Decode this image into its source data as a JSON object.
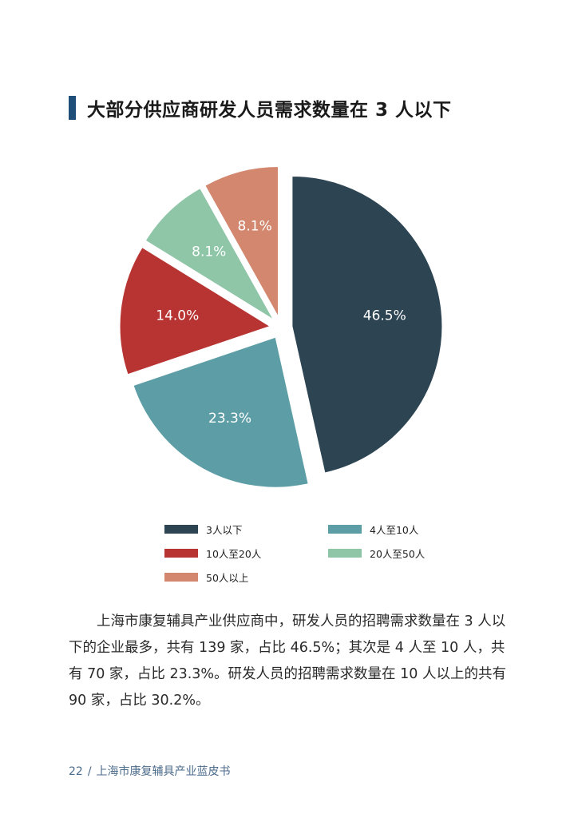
{
  "header": {
    "title": "大部分供应商研发人员需求数量在 3 人以下"
  },
  "chart_data": {
    "type": "pie",
    "slices": [
      {
        "label": "3人以下",
        "value": 46.5,
        "display": "46.5%",
        "color": "#2d4452"
      },
      {
        "label": "4人至10人",
        "value": 23.3,
        "display": "23.3%",
        "color": "#5d9ea6"
      },
      {
        "label": "10人至20人",
        "value": 14.0,
        "display": "14.0%",
        "color": "#b73432"
      },
      {
        "label": "20人至50人",
        "value": 8.1,
        "display": "8.1%",
        "color": "#8fc6a8"
      },
      {
        "label": "50人以上",
        "value": 8.1,
        "display": "8.1%",
        "color": "#d2876e"
      }
    ],
    "legend_position": "bottom"
  },
  "body": {
    "paragraph": "上海市康复辅具产业供应商中，研发人员的招聘需求数量在 3 人以下的企业最多，共有 139 家，占比 46.5%；其次是 4 人至 10 人，共有 70 家，占比 23.3%。研发人员的招聘需求数量在 10 人以上的共有 90 家，占比 30.2%。"
  },
  "footer": {
    "page_number": "22",
    "separator": "/",
    "book_title": "上海市康复辅具产业蓝皮书"
  }
}
